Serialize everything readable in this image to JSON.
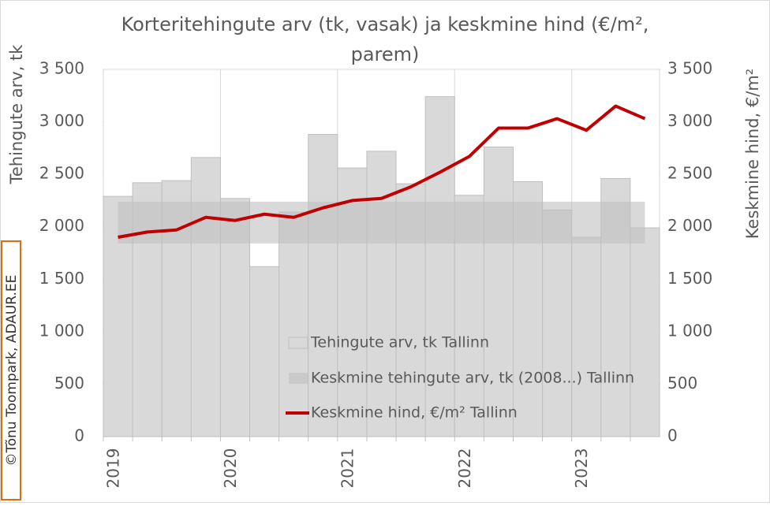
{
  "chart_data": {
    "type": "bar-line",
    "title": "Korteritehingute arv (tk, vasak) ja keskmine hind (€/m², parem)",
    "y_label": "Tehingute arv, tk",
    "y2_label": "Keskmine hind, €/m²",
    "watermark": "©Tõnu Toompark, ADAUR.EE",
    "categories": [
      "2019",
      null,
      null,
      null,
      "2020",
      null,
      null,
      null,
      "2021",
      null,
      null,
      null,
      "2022",
      null,
      null,
      null,
      "2023",
      null,
      null
    ],
    "series": [
      {
        "name": "Tehingute arv, tk Tallinn",
        "type": "bar",
        "color": "#d9d9d9",
        "values": [
          2290,
          2420,
          2440,
          2660,
          2270,
          1620,
          2140,
          2880,
          2560,
          2720,
          2410,
          3240,
          2300,
          2760,
          2430,
          2160,
          1900,
          2460,
          1990
        ]
      },
      {
        "name": "Keskmine tehingute arv, tk (2008...) Tallinn",
        "type": "band",
        "color": "#bfbfbf",
        "values": [
          2040,
          2040,
          2040,
          2040,
          2040,
          2040,
          2040,
          2040,
          2040,
          2040,
          2040,
          2040,
          2040,
          2040,
          2040,
          2040,
          2040,
          2040,
          2040
        ]
      },
      {
        "name": "Keskmine hind, €/m² Tallinn",
        "type": "line",
        "axis": "y2",
        "color": "#c00000",
        "values": [
          1900,
          1950,
          1970,
          2090,
          2060,
          2120,
          2090,
          2180,
          2250,
          2270,
          2380,
          2520,
          2670,
          2940,
          2940,
          3030,
          2920,
          3150,
          3030
        ]
      }
    ],
    "ylim": [
      0,
      3500
    ],
    "yticks": [
      0,
      500,
      {
        "value": 1000,
        "label": "1 000"
      },
      {
        "value": 1500,
        "label": "1 500"
      },
      {
        "value": 2000,
        "label": "2 000"
      },
      {
        "value": 2500,
        "label": "2 500"
      },
      {
        "value": 3000,
        "label": "3 000"
      },
      {
        "value": 3500,
        "label": "3 500"
      }
    ],
    "y2lim": [
      0,
      3500
    ],
    "y2ticks": [
      0,
      500,
      {
        "value": 1000,
        "label": "1 000"
      },
      {
        "value": 1500,
        "label": "1 500"
      },
      {
        "value": 2000,
        "label": "2 000"
      },
      {
        "value": 2500,
        "label": "2 500"
      },
      {
        "value": 3000,
        "label": "3 000"
      },
      {
        "value": 3500,
        "label": "3 500"
      }
    ]
  }
}
